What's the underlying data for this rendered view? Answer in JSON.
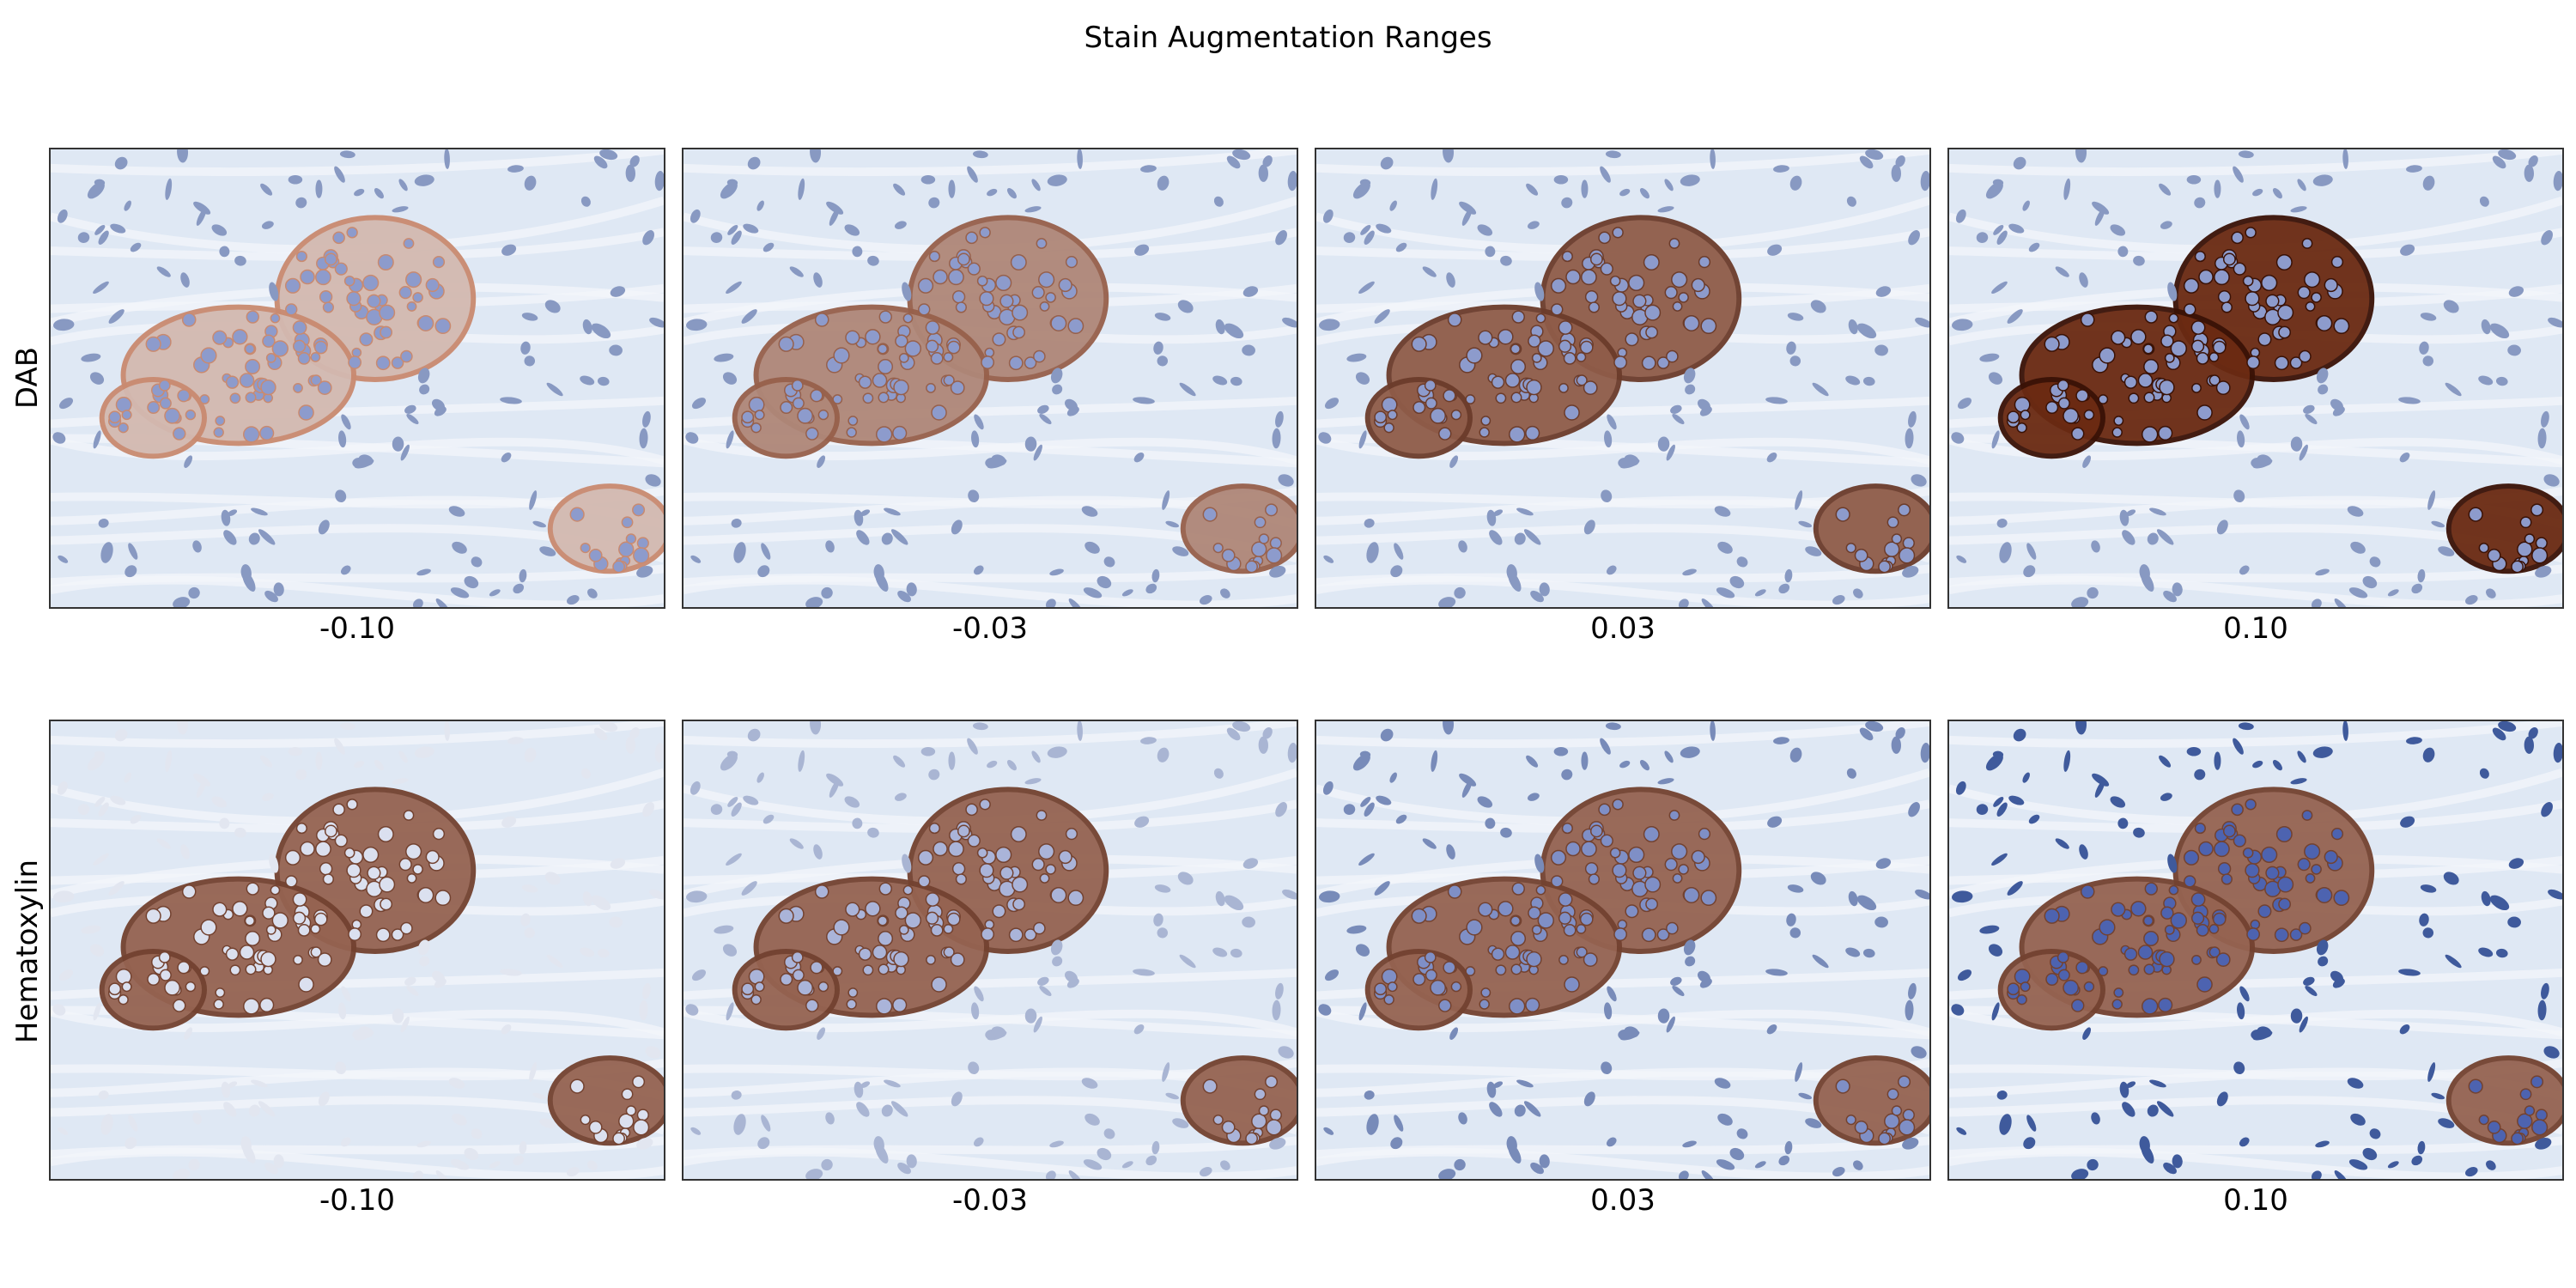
{
  "figure": {
    "title": "Stain Augmentation Ranges"
  },
  "rows": [
    {
      "label": "DAB",
      "panels": [
        {
          "value_label": "-0.10",
          "stain_shift": -0.1
        },
        {
          "value_label": "-0.03",
          "stain_shift": -0.03
        },
        {
          "value_label": "0.03",
          "stain_shift": 0.03
        },
        {
          "value_label": "0.10",
          "stain_shift": 0.1
        }
      ]
    },
    {
      "label": "Hematoxylin",
      "panels": [
        {
          "value_label": "-0.10",
          "stain_shift": -0.1
        },
        {
          "value_label": "-0.03",
          "stain_shift": -0.03
        },
        {
          "value_label": "0.03",
          "stain_shift": 0.03
        },
        {
          "value_label": "0.10",
          "stain_shift": 0.1
        }
      ]
    }
  ],
  "colors": {
    "background_tissue": "#dfe8f4",
    "hematoxylin": "#3f5a9c",
    "dab": "#6b2a12",
    "frame": "#333333"
  }
}
